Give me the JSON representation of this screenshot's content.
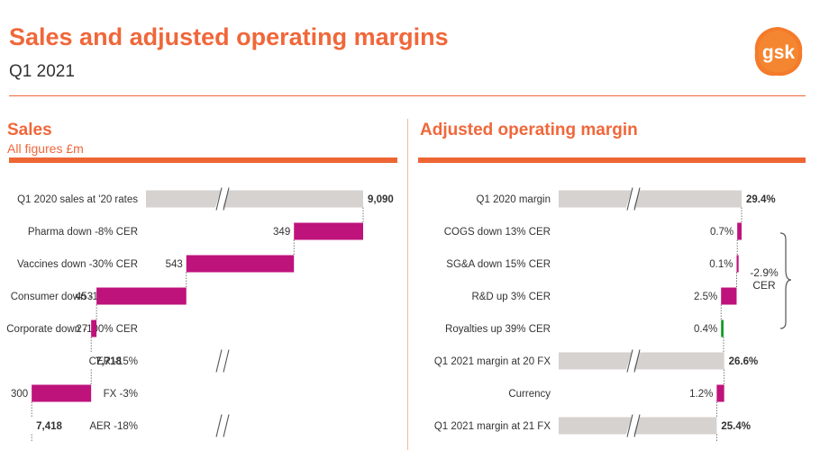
{
  "header": {
    "title": "Sales and adjusted operating margins",
    "subtitle": "Q1 2021",
    "logo_text": "gsk"
  },
  "colors": {
    "accent": "#f0673a",
    "total_bar": "#d5d2cf",
    "decrease_bar": "#be137b",
    "increase_bar": "#119a25"
  },
  "sales_panel": {
    "title": "Sales",
    "subtitle": "All figures £m"
  },
  "margin_panel": {
    "title": "Adjusted operating margin",
    "bracket_label_line1": "-2.9%",
    "bracket_label_line2": "CER"
  },
  "chart_data": [
    {
      "type": "bar",
      "subtype": "waterfall",
      "title": "Sales",
      "unit_note": "All figures £m",
      "axis_break": true,
      "categories": [
        "Q1 2020 sales at '20 rates",
        "Pharma down -8% CER",
        "Vaccines down -30% CER",
        "Consumer down -16% CER",
        "Corporate down -100% CER",
        "CER -15%",
        "FX -3%",
        "AER -18%"
      ],
      "labels": [
        "9,090",
        "349",
        "543",
        "453",
        "27",
        "7,718",
        "300",
        "7,418"
      ],
      "values": [
        9090,
        -349,
        -543,
        -453,
        -27,
        7718,
        -300,
        7418
      ],
      "kinds": [
        "total",
        "decrease",
        "decrease",
        "decrease",
        "decrease",
        "total",
        "decrease",
        "total"
      ],
      "xlim": [
        0,
        9090
      ]
    },
    {
      "type": "bar",
      "subtype": "waterfall",
      "title": "Adjusted operating margin",
      "axis_break": true,
      "categories": [
        "Q1 2020 margin",
        "COGS down 13% CER",
        "SG&A down 15% CER",
        "R&D up 3% CER",
        "Royalties up 39% CER",
        "Q1 2021 margin at 20 FX",
        "Currency",
        "Q1 2021 margin at 21 FX"
      ],
      "labels": [
        "29.4%",
        "0.7%",
        "0.1%",
        "2.5%",
        "0.4%",
        "26.6%",
        "1.2%",
        "25.4%"
      ],
      "values": [
        29.4,
        -0.7,
        -0.1,
        -2.5,
        0.4,
        26.6,
        -1.2,
        25.4
      ],
      "kinds": [
        "total",
        "decrease",
        "decrease",
        "decrease",
        "increase",
        "total",
        "decrease",
        "total"
      ],
      "xlim": [
        0,
        29.4
      ]
    }
  ]
}
